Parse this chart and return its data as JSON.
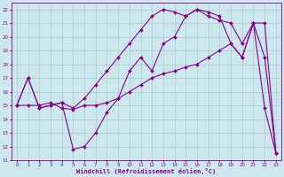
{
  "xlabel": "Windchill (Refroidissement éolien,°C)",
  "bg_color": "#cce8ee",
  "grid_color": "#aacccc",
  "line_color": "#880088",
  "xlim": [
    -0.5,
    23.5
  ],
  "ylim": [
    11,
    22.5
  ],
  "xticks": [
    0,
    1,
    2,
    3,
    4,
    5,
    6,
    7,
    8,
    9,
    10,
    11,
    12,
    13,
    14,
    15,
    16,
    17,
    18,
    19,
    20,
    21,
    22,
    23
  ],
  "yticks": [
    11,
    12,
    13,
    14,
    15,
    16,
    17,
    18,
    19,
    20,
    21,
    22
  ],
  "curve1_x": [
    0,
    1,
    2,
    3,
    4,
    5,
    6,
    7,
    8,
    9,
    10,
    11,
    12,
    13,
    14,
    15,
    16,
    17,
    18,
    19,
    20,
    21,
    22,
    23
  ],
  "curve1_y": [
    15,
    17,
    14.8,
    15,
    15.2,
    11.8,
    12.0,
    13.0,
    14.5,
    15.5,
    17.5,
    18.5,
    17.5,
    19.5,
    20.0,
    21.5,
    22.0,
    21.8,
    21.5,
    19.5,
    18.5,
    21.0,
    14.8,
    11.5
  ],
  "curve2_x": [
    0,
    1,
    2,
    3,
    4,
    5,
    6,
    7,
    8,
    9,
    10,
    11,
    12,
    13,
    14,
    15,
    16,
    17,
    18,
    19,
    20,
    21,
    22,
    23
  ],
  "curve2_y": [
    15,
    15.0,
    15.0,
    15.2,
    14.8,
    14.7,
    15.0,
    15.0,
    15.2,
    15.5,
    16.0,
    16.5,
    17.0,
    17.3,
    17.5,
    17.8,
    18.0,
    18.5,
    19.0,
    19.5,
    18.5,
    21.0,
    18.5,
    11.5
  ],
  "curve3_x": [
    0,
    1,
    2,
    3,
    4,
    5,
    6,
    7,
    8,
    9,
    10,
    11,
    12,
    13,
    14,
    15,
    16,
    17,
    18,
    19,
    20,
    21,
    22,
    23
  ],
  "curve3_y": [
    15,
    17,
    14.8,
    15.0,
    15.2,
    14.8,
    15.5,
    16.5,
    17.5,
    18.5,
    19.5,
    20.5,
    21.5,
    22.0,
    21.8,
    21.5,
    22.0,
    21.5,
    21.2,
    21.0,
    19.5,
    21.0,
    21.0,
    11.5
  ]
}
